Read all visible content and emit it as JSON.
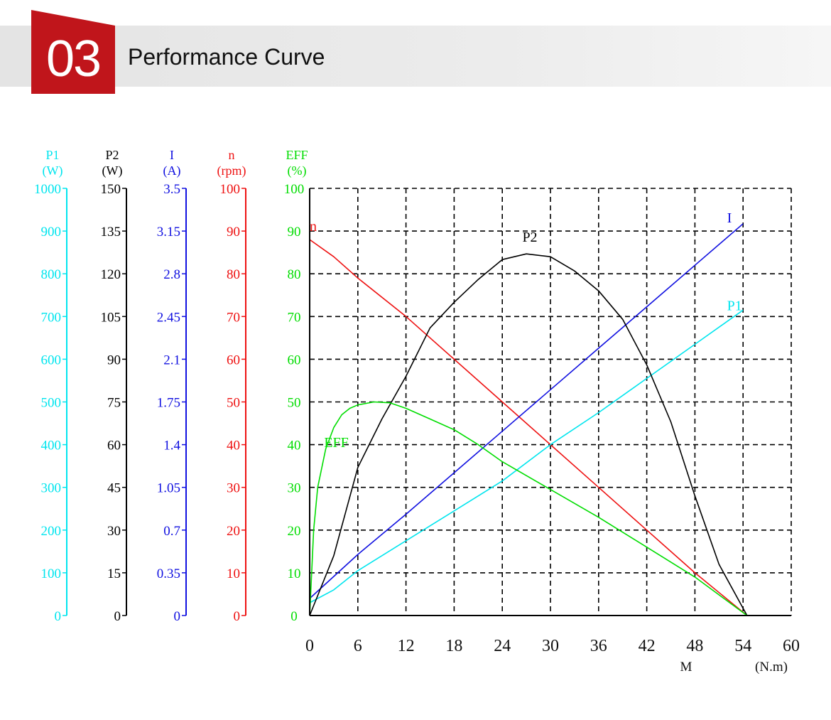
{
  "header": {
    "number": "03",
    "title": "Performance Curve",
    "accent": "#c0151b"
  },
  "chart_data": {
    "type": "line",
    "x": {
      "label": "M",
      "unit": "(N.m)",
      "range": [
        0,
        60
      ],
      "ticks": [
        "0",
        "6",
        "12",
        "18",
        "24",
        "30",
        "36",
        "42",
        "48",
        "54",
        "60"
      ]
    },
    "eff_axis": {
      "label": "EFF",
      "unit": "(%)",
      "range": [
        0,
        100
      ],
      "color": "#00dd00",
      "ticks": [
        "0",
        "10",
        "20",
        "30",
        "40",
        "50",
        "60",
        "70",
        "80",
        "90",
        "100"
      ]
    },
    "axes": [
      {
        "id": "P1",
        "label": "P1",
        "unit": "(W)",
        "color": "#00e5ee",
        "range": [
          0,
          1000
        ],
        "ticks": [
          "0",
          "100",
          "200",
          "300",
          "400",
          "500",
          "600",
          "700",
          "800",
          "900",
          "1000"
        ]
      },
      {
        "id": "P2",
        "label": "P2",
        "unit": "(W)",
        "color": "#000000",
        "range": [
          0,
          150
        ],
        "ticks": [
          "0",
          "15",
          "30",
          "45",
          "60",
          "75",
          "90",
          "105",
          "120",
          "135",
          "150"
        ]
      },
      {
        "id": "I",
        "label": "I",
        "unit": "(A)",
        "color": "#1010e0",
        "range": [
          0,
          3.5
        ],
        "ticks": [
          "0",
          "0.35",
          "0.7",
          "1.05",
          "1.4",
          "1.75",
          "2.1",
          "2.45",
          "2.8",
          "3.15",
          "3.5"
        ]
      },
      {
        "id": "n",
        "label": "n",
        "unit": "(rpm)",
        "color": "#ee1111",
        "range": [
          0,
          100
        ],
        "ticks": [
          "0",
          "10",
          "20",
          "30",
          "40",
          "50",
          "60",
          "70",
          "80",
          "90",
          "100"
        ]
      }
    ],
    "grid": true,
    "series": [
      {
        "name": "n",
        "axis": "n",
        "color": "#ee1111",
        "points": [
          [
            0,
            88
          ],
          [
            3,
            84
          ],
          [
            6,
            79
          ],
          [
            12,
            70
          ],
          [
            18,
            60
          ],
          [
            24,
            50
          ],
          [
            30,
            40
          ],
          [
            36,
            30
          ],
          [
            42,
            20
          ],
          [
            48,
            10
          ],
          [
            54.5,
            0
          ]
        ]
      },
      {
        "name": "I",
        "axis": "I",
        "color": "#1010e0",
        "points": [
          [
            0,
            0.14
          ],
          [
            6,
            0.5
          ],
          [
            12,
            0.83
          ],
          [
            18,
            1.17
          ],
          [
            24,
            1.51
          ],
          [
            30,
            1.85
          ],
          [
            36,
            2.19
          ],
          [
            42,
            2.53
          ],
          [
            48,
            2.87
          ],
          [
            54,
            3.21
          ]
        ]
      },
      {
        "name": "P1",
        "axis": "P1",
        "color": "#00e5ee",
        "points": [
          [
            0,
            30
          ],
          [
            3,
            60
          ],
          [
            6,
            105
          ],
          [
            12,
            175
          ],
          [
            18,
            245
          ],
          [
            24,
            315
          ],
          [
            30,
            400
          ],
          [
            36,
            475
          ],
          [
            42,
            555
          ],
          [
            48,
            635
          ],
          [
            54,
            715
          ]
        ]
      },
      {
        "name": "P2",
        "axis": "P2",
        "color": "#000000",
        "points": [
          [
            0,
            0
          ],
          [
            3,
            21
          ],
          [
            6,
            52
          ],
          [
            9,
            69
          ],
          [
            12,
            84
          ],
          [
            15,
            101
          ],
          [
            18,
            110
          ],
          [
            21,
            118
          ],
          [
            24,
            125
          ],
          [
            27,
            127
          ],
          [
            30,
            126
          ],
          [
            33,
            121
          ],
          [
            36,
            114
          ],
          [
            39,
            104
          ],
          [
            42,
            88
          ],
          [
            45,
            68
          ],
          [
            48,
            42
          ],
          [
            51,
            18
          ],
          [
            54.5,
            0
          ]
        ]
      },
      {
        "name": "EFF",
        "axis": "EFF",
        "color": "#00dd00",
        "points": [
          [
            0,
            0
          ],
          [
            0.5,
            20
          ],
          [
            1,
            30
          ],
          [
            2,
            39
          ],
          [
            3,
            44
          ],
          [
            4,
            47
          ],
          [
            5,
            48.5
          ],
          [
            6,
            49.3
          ],
          [
            8,
            50
          ],
          [
            10,
            49.8
          ],
          [
            12,
            48.5
          ],
          [
            15,
            46
          ],
          [
            18,
            43.5
          ],
          [
            21,
            40
          ],
          [
            24,
            36
          ],
          [
            30,
            29.5
          ],
          [
            36,
            23
          ],
          [
            42,
            16
          ],
          [
            48,
            9
          ],
          [
            54.5,
            0
          ]
        ]
      }
    ],
    "curve_labels": [
      {
        "text": "n",
        "x": 0,
        "y": 90,
        "color": "#ee1111"
      },
      {
        "text": "P2",
        "x": 26.5,
        "y": 87.5,
        "color": "#000000"
      },
      {
        "text": "I",
        "x": 52,
        "y": 92,
        "color": "#1010e0"
      },
      {
        "text": "P1",
        "x": 52,
        "y": 71.5,
        "color": "#00e5ee"
      },
      {
        "text": "EFF",
        "x": 1.8,
        "y": 39.4,
        "color": "#00dd00"
      }
    ]
  }
}
